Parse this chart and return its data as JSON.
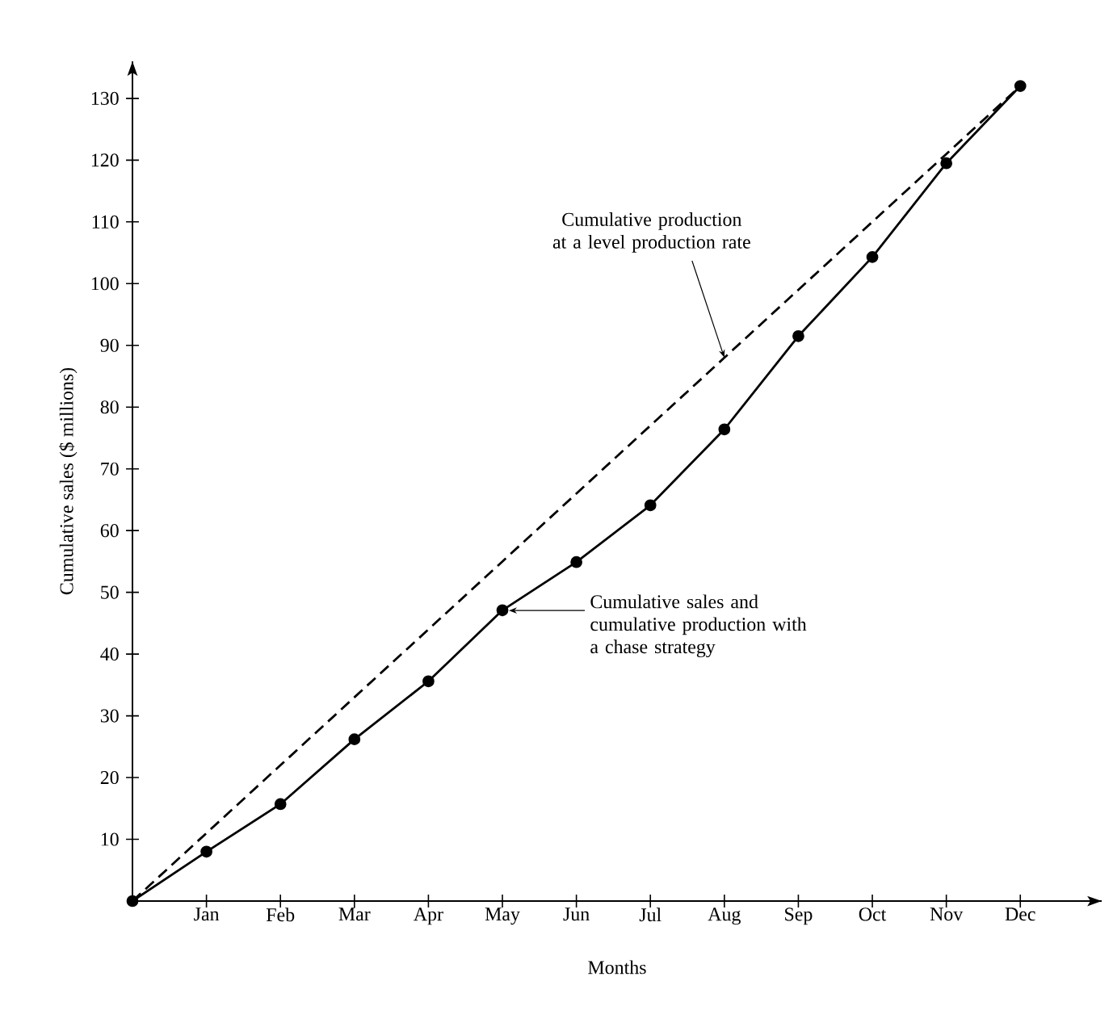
{
  "chart_data": {
    "type": "line",
    "xlabel": "Months",
    "ylabel": "Cumulative sales ($ millions)",
    "categories": [
      null,
      "Jan",
      "Feb",
      "Mar",
      "Apr",
      "May",
      "Jun",
      "Jul",
      "Aug",
      "Sep",
      "Oct",
      "Nov",
      "Dec"
    ],
    "ylim": [
      0,
      136
    ],
    "yticks": [
      10,
      20,
      30,
      40,
      50,
      60,
      70,
      80,
      90,
      100,
      110,
      120,
      130
    ],
    "series": [
      {
        "color": "#000000",
        "marker": "circle",
        "line_style": "solid",
        "values": [
          0,
          8,
          15.7,
          26.2,
          35.6,
          47.1,
          54.9,
          64.1,
          76.4,
          91.5,
          104.3,
          119.5,
          132
        ]
      },
      {
        "color": "#000000",
        "marker": "none",
        "line_style": "dashed",
        "values": [
          0,
          11,
          22,
          33,
          44,
          55,
          66,
          77,
          88,
          99,
          110,
          121,
          132
        ]
      }
    ],
    "annotations": [
      {
        "text": "Cumulative production at a level production rate",
        "x": "Aug",
        "y": 88
      },
      "Cumulative sales and cumulative production with a chase strategy"
    ]
  }
}
